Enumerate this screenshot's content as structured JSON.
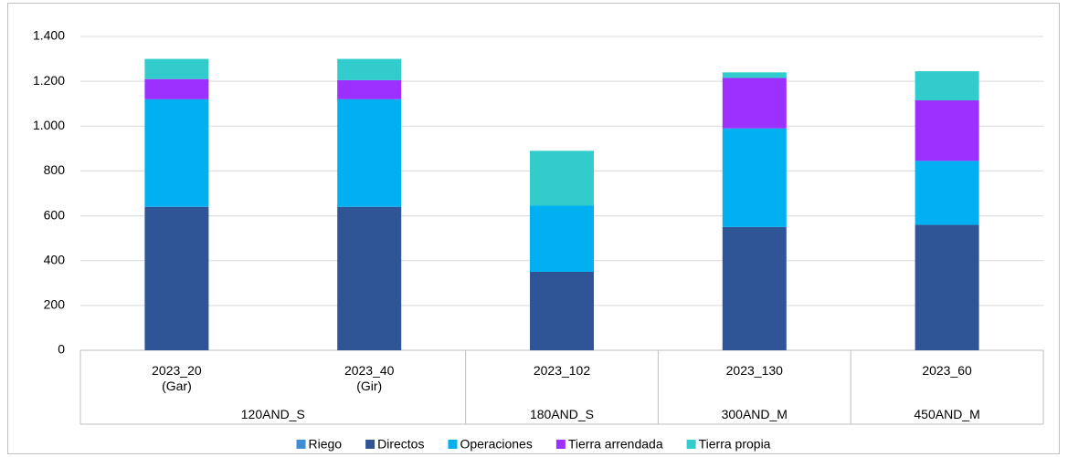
{
  "chart_data": {
    "type": "stacked_bar",
    "categories": [
      "2023_20\n(Gar)",
      "2023_40\n(Gir)",
      "2023_102",
      "2023_130",
      "2023_60"
    ],
    "groups": [
      {
        "label": "120AND_S",
        "span": 2
      },
      {
        "label": "180AND_S",
        "span": 1
      },
      {
        "label": "300AND_M",
        "span": 1
      },
      {
        "label": "450AND_M",
        "span": 1
      }
    ],
    "series": [
      {
        "name": "Riego",
        "color": "#3e8ed6",
        "values": [
          0,
          0,
          0,
          0,
          0
        ]
      },
      {
        "name": "Directos",
        "color": "#2f5597",
        "values": [
          640,
          640,
          350,
          550,
          560
        ]
      },
      {
        "name": "Operaciones",
        "color": "#00b0f0",
        "values": [
          480,
          480,
          295,
          440,
          285
        ]
      },
      {
        "name": "Tierra arrendada",
        "color": "#9b30ff",
        "values": [
          90,
          85,
          0,
          225,
          270
        ]
      },
      {
        "name": "Tierra propia",
        "color": "#33cccc",
        "values": [
          90,
          95,
          245,
          25,
          130
        ]
      }
    ],
    "ylim": [
      0,
      1400
    ],
    "yticks": [
      0,
      200,
      400,
      600,
      800,
      {
        "value": 1000,
        "label": "1.000"
      },
      {
        "value": 1200,
        "label": "1.200"
      },
      {
        "value": 1400,
        "label": "1.400"
      }
    ],
    "grid": true,
    "legend": "bottom"
  }
}
